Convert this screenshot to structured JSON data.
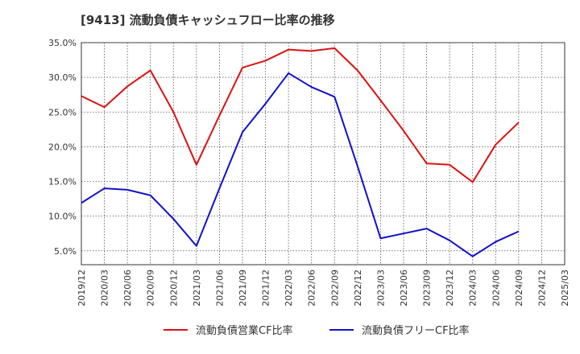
{
  "chart_data": {
    "type": "line",
    "title": "[9413]  流動負債キャッシュフロー比率の推移",
    "xlabel": "",
    "ylabel": "",
    "ylim": [
      3,
      35
    ],
    "y_ticks": [
      "5.0%",
      "10.0%",
      "15.0%",
      "20.0%",
      "25.0%",
      "30.0%",
      "35.0%"
    ],
    "y_tick_values": [
      5,
      10,
      15,
      20,
      25,
      30,
      35
    ],
    "grid": true,
    "legend_position": "bottom",
    "categories": [
      "2019/12",
      "2020/03",
      "2020/06",
      "2020/09",
      "2020/12",
      "2021/03",
      "2021/06",
      "2021/09",
      "2021/12",
      "2022/03",
      "2022/06",
      "2022/09",
      "2022/12",
      "2023/03",
      "2023/06",
      "2023/09",
      "2023/12",
      "2024/03",
      "2024/06",
      "2024/09",
      "2024/12",
      "2025/03"
    ],
    "series": [
      {
        "name": "流動負債営業CF比率",
        "color": "#dd1111",
        "values": [
          27.3,
          25.7,
          28.7,
          31.0,
          25.0,
          17.4,
          24.5,
          31.4,
          32.4,
          34.0,
          33.8,
          34.2,
          31.0,
          26.7,
          22.3,
          17.6,
          17.4,
          14.9,
          20.3,
          23.5,
          null,
          null
        ]
      },
      {
        "name": "流動負債フリーCF比率",
        "color": "#1111cc",
        "values": [
          11.9,
          14.0,
          13.8,
          13.0,
          9.6,
          5.7,
          14.0,
          22.1,
          26.2,
          30.6,
          28.6,
          27.2,
          17.2,
          6.8,
          7.5,
          8.2,
          6.5,
          4.2,
          6.3,
          7.8,
          null,
          null
        ]
      }
    ]
  }
}
